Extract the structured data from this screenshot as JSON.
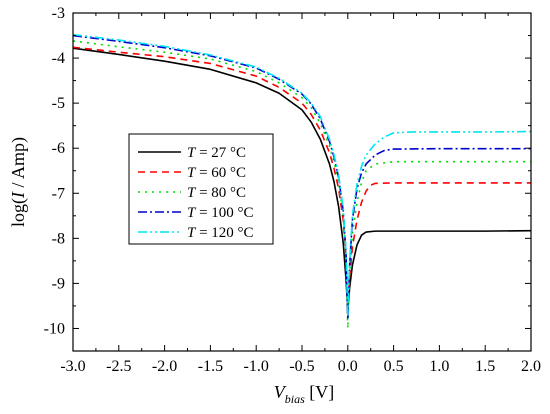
{
  "chart_data": {
    "type": "line",
    "title": "",
    "xlabel": {
      "var": "V",
      "sub": "bias",
      "unit": " [V]"
    },
    "ylabel": {
      "pre": "log(",
      "var": "I",
      "post": " / Amp)"
    },
    "xlim": [
      -3.0,
      2.0
    ],
    "ylim": [
      -10.5,
      -3.0
    ],
    "xticks": [
      -3.0,
      -2.5,
      -2.0,
      -1.5,
      -1.0,
      -0.5,
      0.0,
      0.5,
      1.0,
      1.5,
      2.0
    ],
    "xtick_labels": [
      "-3.0",
      "-2.5",
      "-2.0",
      "-1.5",
      "-1.0",
      "-0.5",
      "0.0",
      "0.5",
      "1.0",
      "1.5",
      "2.0"
    ],
    "yticks": [
      -10,
      -9,
      -8,
      -7,
      -6,
      -5,
      -4,
      -3
    ],
    "ytick_labels": [
      "-10",
      "-9",
      "-8",
      "-7",
      "-6",
      "-5",
      "-4",
      "-3"
    ],
    "grid": false,
    "legend_position": "center-left",
    "series": [
      {
        "name": "T = 27 °C",
        "legend_var": "T",
        "legend_rest": " = 27 °C",
        "color": "#000000",
        "dash": "",
        "points": [
          [
            -3.0,
            -3.78
          ],
          [
            -2.5,
            -3.92
          ],
          [
            -2.0,
            -4.07
          ],
          [
            -1.5,
            -4.25
          ],
          [
            -1.0,
            -4.55
          ],
          [
            -0.75,
            -4.78
          ],
          [
            -0.5,
            -5.15
          ],
          [
            -0.4,
            -5.42
          ],
          [
            -0.3,
            -5.8
          ],
          [
            -0.2,
            -6.35
          ],
          [
            -0.15,
            -6.75
          ],
          [
            -0.1,
            -7.3
          ],
          [
            -0.05,
            -8.1
          ],
          [
            -0.02,
            -8.9
          ],
          [
            0.0,
            -9.6
          ],
          [
            0.02,
            -9.1
          ],
          [
            0.05,
            -8.6
          ],
          [
            0.1,
            -8.15
          ],
          [
            0.15,
            -7.93
          ],
          [
            0.2,
            -7.86
          ],
          [
            0.3,
            -7.84
          ],
          [
            0.5,
            -7.84
          ],
          [
            1.0,
            -7.84
          ],
          [
            1.5,
            -7.84
          ],
          [
            2.0,
            -7.83
          ]
        ]
      },
      {
        "name": "T = 60 °C",
        "legend_var": "T",
        "legend_rest": " = 60 °C",
        "color": "#ff0000",
        "dash": "7,5",
        "points": [
          [
            -3.0,
            -3.76
          ],
          [
            -2.5,
            -3.87
          ],
          [
            -2.0,
            -3.97
          ],
          [
            -1.5,
            -4.12
          ],
          [
            -1.0,
            -4.4
          ],
          [
            -0.75,
            -4.65
          ],
          [
            -0.5,
            -5.0
          ],
          [
            -0.4,
            -5.25
          ],
          [
            -0.3,
            -5.6
          ],
          [
            -0.2,
            -6.1
          ],
          [
            -0.15,
            -6.45
          ],
          [
            -0.1,
            -6.9
          ],
          [
            -0.05,
            -7.6
          ],
          [
            -0.02,
            -8.4
          ],
          [
            0.0,
            -9.5
          ],
          [
            0.02,
            -8.9
          ],
          [
            0.05,
            -8.2
          ],
          [
            0.1,
            -7.6
          ],
          [
            0.15,
            -7.2
          ],
          [
            0.2,
            -6.95
          ],
          [
            0.25,
            -6.82
          ],
          [
            0.3,
            -6.78
          ],
          [
            0.5,
            -6.77
          ],
          [
            1.0,
            -6.77
          ],
          [
            1.5,
            -6.77
          ],
          [
            2.0,
            -6.77
          ]
        ]
      },
      {
        "name": "T = 80 °C",
        "legend_var": "T",
        "legend_rest": " = 80 °C",
        "color": "#00dd00",
        "dash": "2,5",
        "points": [
          [
            -3.0,
            -3.62
          ],
          [
            -2.5,
            -3.75
          ],
          [
            -2.0,
            -3.87
          ],
          [
            -1.5,
            -4.02
          ],
          [
            -1.0,
            -4.3
          ],
          [
            -0.75,
            -4.55
          ],
          [
            -0.5,
            -4.88
          ],
          [
            -0.4,
            -5.1
          ],
          [
            -0.3,
            -5.45
          ],
          [
            -0.2,
            -5.95
          ],
          [
            -0.15,
            -6.3
          ],
          [
            -0.1,
            -6.75
          ],
          [
            -0.05,
            -7.5
          ],
          [
            -0.02,
            -8.4
          ],
          [
            0.0,
            -10.0
          ],
          [
            0.02,
            -8.8
          ],
          [
            0.05,
            -7.9
          ],
          [
            0.1,
            -7.2
          ],
          [
            0.15,
            -6.75
          ],
          [
            0.2,
            -6.5
          ],
          [
            0.3,
            -6.35
          ],
          [
            0.5,
            -6.3
          ],
          [
            1.0,
            -6.3
          ],
          [
            1.5,
            -6.3
          ],
          [
            2.0,
            -6.3
          ]
        ]
      },
      {
        "name": "T = 100 °C",
        "legend_var": "T",
        "legend_rest": " = 100 °C",
        "color": "#0000cc",
        "dash": "9,3,2,3",
        "points": [
          [
            -3.0,
            -3.5
          ],
          [
            -2.5,
            -3.63
          ],
          [
            -2.0,
            -3.77
          ],
          [
            -1.5,
            -3.95
          ],
          [
            -1.0,
            -4.22
          ],
          [
            -0.75,
            -4.47
          ],
          [
            -0.5,
            -4.8
          ],
          [
            -0.4,
            -5.02
          ],
          [
            -0.3,
            -5.35
          ],
          [
            -0.2,
            -5.85
          ],
          [
            -0.15,
            -6.2
          ],
          [
            -0.1,
            -6.65
          ],
          [
            -0.05,
            -7.4
          ],
          [
            -0.02,
            -8.3
          ],
          [
            0.0,
            -9.8
          ],
          [
            0.02,
            -8.6
          ],
          [
            0.05,
            -7.6
          ],
          [
            0.1,
            -6.9
          ],
          [
            0.15,
            -6.55
          ],
          [
            0.2,
            -6.35
          ],
          [
            0.3,
            -6.15
          ],
          [
            0.4,
            -6.05
          ],
          [
            0.5,
            -6.02
          ],
          [
            1.0,
            -6.01
          ],
          [
            1.5,
            -6.01
          ],
          [
            2.0,
            -6.01
          ]
        ]
      },
      {
        "name": "T = 120 °C",
        "legend_var": "T",
        "legend_rest": " = 120 °C",
        "color": "#00e5ee",
        "dash": "9,3,2,3,2,3",
        "points": [
          [
            -3.0,
            -3.48
          ],
          [
            -2.5,
            -3.6
          ],
          [
            -2.0,
            -3.74
          ],
          [
            -1.5,
            -3.93
          ],
          [
            -1.0,
            -4.2
          ],
          [
            -0.75,
            -4.45
          ],
          [
            -0.5,
            -4.78
          ],
          [
            -0.4,
            -5.0
          ],
          [
            -0.3,
            -5.3
          ],
          [
            -0.2,
            -5.8
          ],
          [
            -0.15,
            -6.15
          ],
          [
            -0.1,
            -6.6
          ],
          [
            -0.05,
            -7.35
          ],
          [
            -0.02,
            -8.3
          ],
          [
            0.0,
            -9.7
          ],
          [
            0.02,
            -8.5
          ],
          [
            0.05,
            -7.5
          ],
          [
            0.1,
            -6.8
          ],
          [
            0.15,
            -6.4
          ],
          [
            0.2,
            -6.15
          ],
          [
            0.3,
            -5.9
          ],
          [
            0.4,
            -5.75
          ],
          [
            0.5,
            -5.66
          ],
          [
            0.7,
            -5.64
          ],
          [
            1.0,
            -5.64
          ],
          [
            1.5,
            -5.64
          ],
          [
            2.0,
            -5.63
          ]
        ]
      }
    ]
  }
}
